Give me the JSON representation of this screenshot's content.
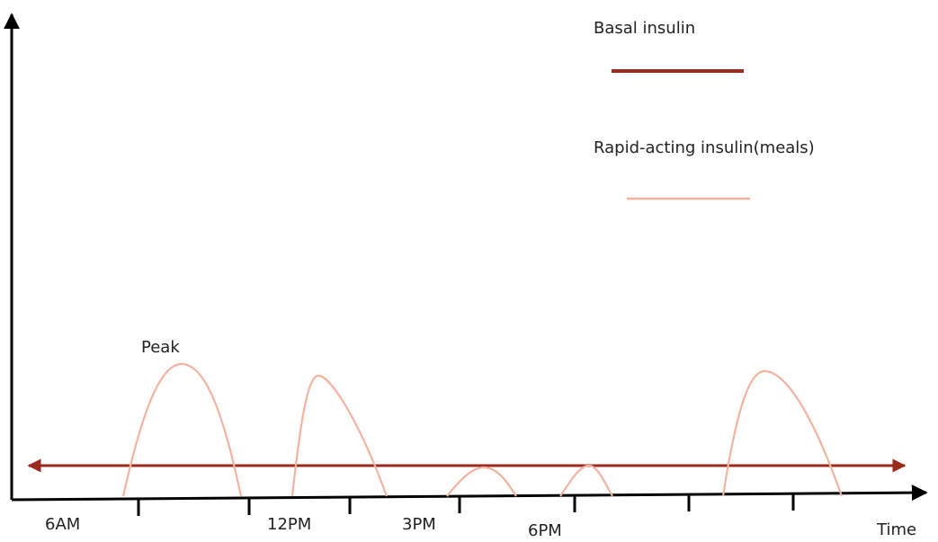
{
  "diagram": {
    "legend": {
      "basal_label": "Basal insulin",
      "rapid_label": "Rapid-acting insulin(meals)"
    },
    "annotation": "Peak",
    "x_axis_label": "Time",
    "time_labels": [
      "6AM",
      "12PM",
      "3PM",
      "6PM"
    ],
    "colors": {
      "axis": "#000000",
      "basal": "#9b2a1c",
      "rapid": "#f2b3a0"
    }
  }
}
